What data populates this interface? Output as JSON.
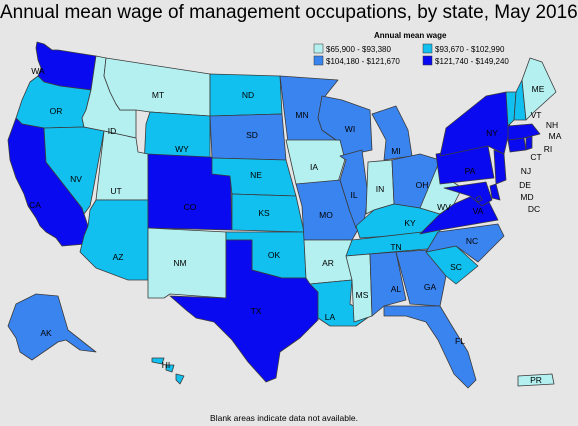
{
  "title": "Annual mean wage of management occupations, by state, May 2016",
  "legend": {
    "title": "Annual mean wage",
    "bins": [
      {
        "label": "$65,900 - $93,380",
        "color": "#b4f0f0"
      },
      {
        "label": "$93,670 - $102,990",
        "color": "#12c0f0"
      },
      {
        "label": "$104,180 - $121,670",
        "color": "#3a84f0"
      },
      {
        "label": "$121,740 - $149,240",
        "color": "#0a0af0"
      }
    ]
  },
  "footnote": "Blank areas indicate data not available.",
  "states": [
    {
      "abbr": "WA",
      "bin": 3
    },
    {
      "abbr": "OR",
      "bin": 1
    },
    {
      "abbr": "CA",
      "bin": 3
    },
    {
      "abbr": "NV",
      "bin": 1
    },
    {
      "abbr": "ID",
      "bin": 0
    },
    {
      "abbr": "MT",
      "bin": 0
    },
    {
      "abbr": "WY",
      "bin": 1
    },
    {
      "abbr": "UT",
      "bin": 0
    },
    {
      "abbr": "AZ",
      "bin": 1
    },
    {
      "abbr": "CO",
      "bin": 3
    },
    {
      "abbr": "NM",
      "bin": 0
    },
    {
      "abbr": "ND",
      "bin": 1
    },
    {
      "abbr": "SD",
      "bin": 2
    },
    {
      "abbr": "NE",
      "bin": 1
    },
    {
      "abbr": "KS",
      "bin": 1
    },
    {
      "abbr": "OK",
      "bin": 1
    },
    {
      "abbr": "TX",
      "bin": 3
    },
    {
      "abbr": "MN",
      "bin": 2
    },
    {
      "abbr": "IA",
      "bin": 0
    },
    {
      "abbr": "MO",
      "bin": 2
    },
    {
      "abbr": "AR",
      "bin": 0
    },
    {
      "abbr": "LA",
      "bin": 1
    },
    {
      "abbr": "WI",
      "bin": 2
    },
    {
      "abbr": "IL",
      "bin": 2
    },
    {
      "abbr": "MI",
      "bin": 2
    },
    {
      "abbr": "IN",
      "bin": 0
    },
    {
      "abbr": "OH",
      "bin": 2
    },
    {
      "abbr": "KY",
      "bin": 1
    },
    {
      "abbr": "TN",
      "bin": 1
    },
    {
      "abbr": "MS",
      "bin": 0
    },
    {
      "abbr": "AL",
      "bin": 2
    },
    {
      "abbr": "GA",
      "bin": 2
    },
    {
      "abbr": "FL",
      "bin": 2
    },
    {
      "abbr": "SC",
      "bin": 1
    },
    {
      "abbr": "NC",
      "bin": 2
    },
    {
      "abbr": "VA",
      "bin": 3
    },
    {
      "abbr": "WV",
      "bin": 0
    },
    {
      "abbr": "PA",
      "bin": 3
    },
    {
      "abbr": "NY",
      "bin": 3
    },
    {
      "abbr": "NJ",
      "bin": 3
    },
    {
      "abbr": "DE",
      "bin": 3
    },
    {
      "abbr": "MD",
      "bin": 3
    },
    {
      "abbr": "DC",
      "bin": 3
    },
    {
      "abbr": "CT",
      "bin": 3
    },
    {
      "abbr": "RI",
      "bin": 3
    },
    {
      "abbr": "MA",
      "bin": 3
    },
    {
      "abbr": "VT",
      "bin": 1
    },
    {
      "abbr": "NH",
      "bin": 1
    },
    {
      "abbr": "ME",
      "bin": 0
    },
    {
      "abbr": "AK",
      "bin": 2
    },
    {
      "abbr": "HI",
      "bin": 1
    },
    {
      "abbr": "PR",
      "bin": 0
    }
  ]
}
